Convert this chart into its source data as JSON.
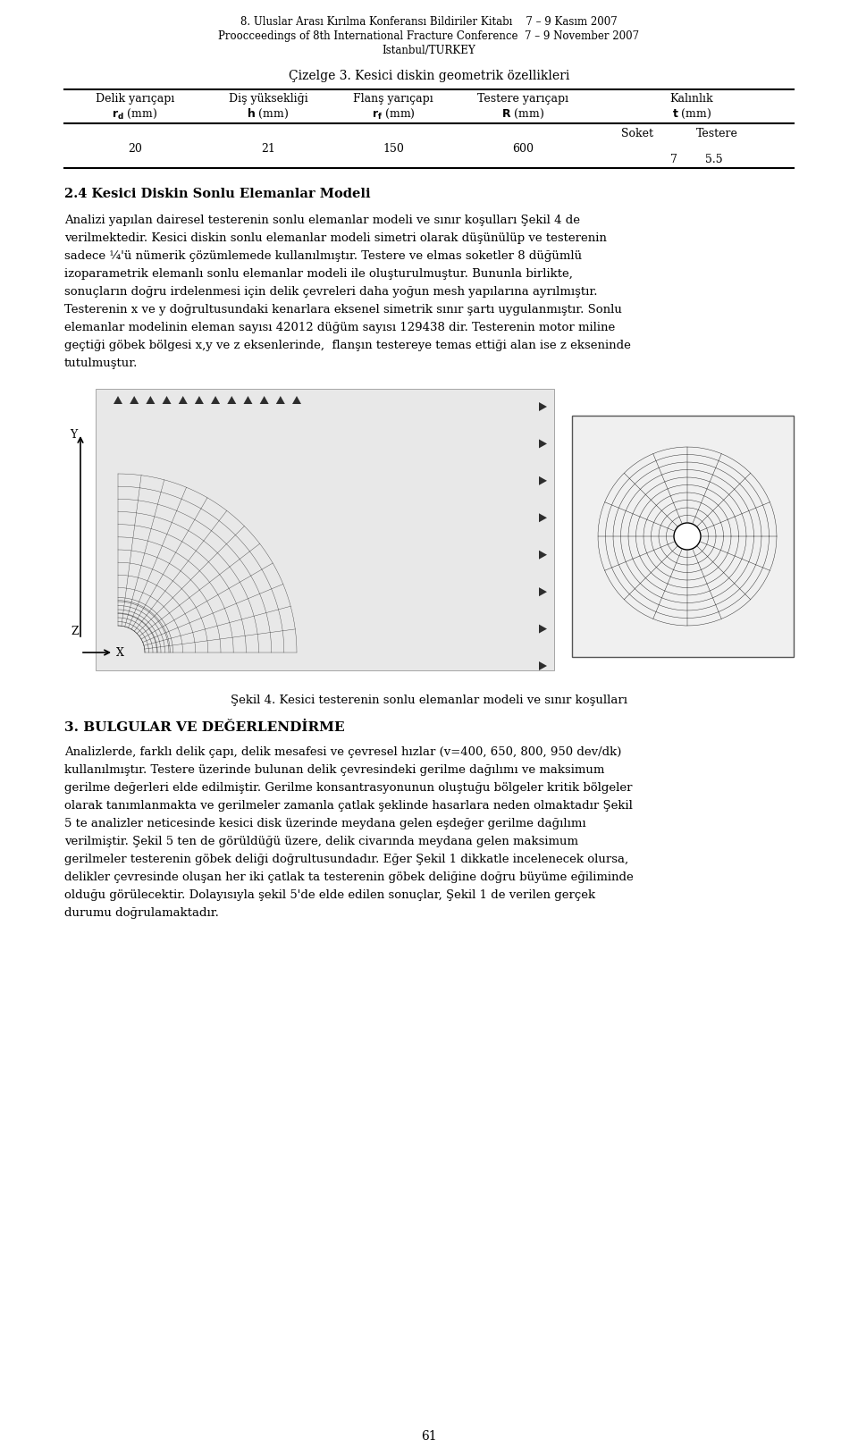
{
  "header_line1": "8. Uluslar Arası Kırılma Konferansı Bildiriler Kitabı    7 – 9 Kasım 2007",
  "header_line2": "Proocceedings of 8th International Fracture Conference  7 – 9 November 2007",
  "header_line3": "Istanbul/TURKEY",
  "table_title": "Çizelge 3. Kesici diskin geometrik özellikleri",
  "col_headers_top": [
    "Delik yarıçapı",
    "Diş yüksekliği",
    "Flanş yarıçapı",
    "Testere yarıçapı",
    "Kalınlık"
  ],
  "col_headers_bold": [
    "r_d (mm)",
    "h (mm)",
    "r_f (mm)",
    "R (mm)",
    "t (mm)"
  ],
  "col_headers_bold_display": [
    "**r**_d (mm)",
    "**h** (mm)",
    "**r**_f (mm)",
    "**R** (mm)",
    "**t** (mm)"
  ],
  "col_sub_headers": [
    "",
    "",
    "",
    "",
    "Soket    Testere"
  ],
  "data_row": [
    "20",
    "21",
    "150",
    "600",
    "7    5.5"
  ],
  "section_title": "2.4 Kesici Diskin Sonlu Elemanlar Modeli",
  "paragraph1": "Analizi yapılan dairesel testerenin sonlu elemanlar modeli ve sınır koşulları Şekil 4 de\nverilmektedir. Kesici diskin sonlu elemanlar modeli simetri olarak düşünülüp ve testerenin\nsadece ¼'ü nümerik çözümlemede kullanılmıştır. Testere ve elmas soketler 8 düğümlü\nizoparametrik elemanlı sonlu elemanlar modeli ile oluşturulmuştur. Bununla birlikte,\nsonuçların doğru irdelenmesi için delik çevreleri daha yoğun mesh yapılarına ayrılmıştır.\nTesterenin x ve y doğrultusundaki kenarlara eksenel simetrik sınır şartı uygulanmıştır. Sonlu\nelemanlar modelinin eleman sayısı 42012 düğüm sayısı 129438 dir. Testerenin motor miline\ngeçtiği göbek bölgesi x,y ve z eksenlerinde,  flanşın testereye temas ettiği alan ise z ekseninde\ntutulmuştur.",
  "fig_caption": "Şekil 4. Kesici testerenin sonlu elemanlar modeli ve sınır koşulları",
  "section2_title": "3. BULGULAR VE DEĞERLENDİRME",
  "paragraph2": "Analizlerde, farklı delik çapı, delik mesafesi ve çevresel hızlar (v=400, 650, 800, 950 dev/dk)\nkullanılmıştır. Testere üzerinde bulunan delik çevresindeki gerilme dağılımı ve maksimum\ngerilme değerleri elde edilmiştir. Gerilme konsantrasyonunun oluştuğu bölgeler kritik bölgeler\nolarak tanımlanmakta ve gerilmeler zamanla çatlak şeklinde hasarlara neden olmaktadır Şekil\n5 te analizler neticesinde kesici disk üzerinde meydana gelen eşdeğer gerilme dağılımı\nverilmiştir. Şekil 5 ten de görüldüğü üzere, delik civarında meydana gelen maksimum\ngerilmeler testerenin göbek deliği doğrultusundadır. Eğer Şekil 1 dikkatle incelenecek olursa,\ndelikler çevresinde oluşan her iki çatlak ta testerenin göbek deliğine doğru büyüme eğiliminde\nolduğu görülecektir. Dolayısıyla şekil 5'de elde edilen sonuçlar, Şekil 1 de verilen gerçek\ndurumu doğrulamaktadır.",
  "page_number": "61",
  "bg_color": "#ffffff",
  "text_color": "#000000",
  "font_family": "serif"
}
